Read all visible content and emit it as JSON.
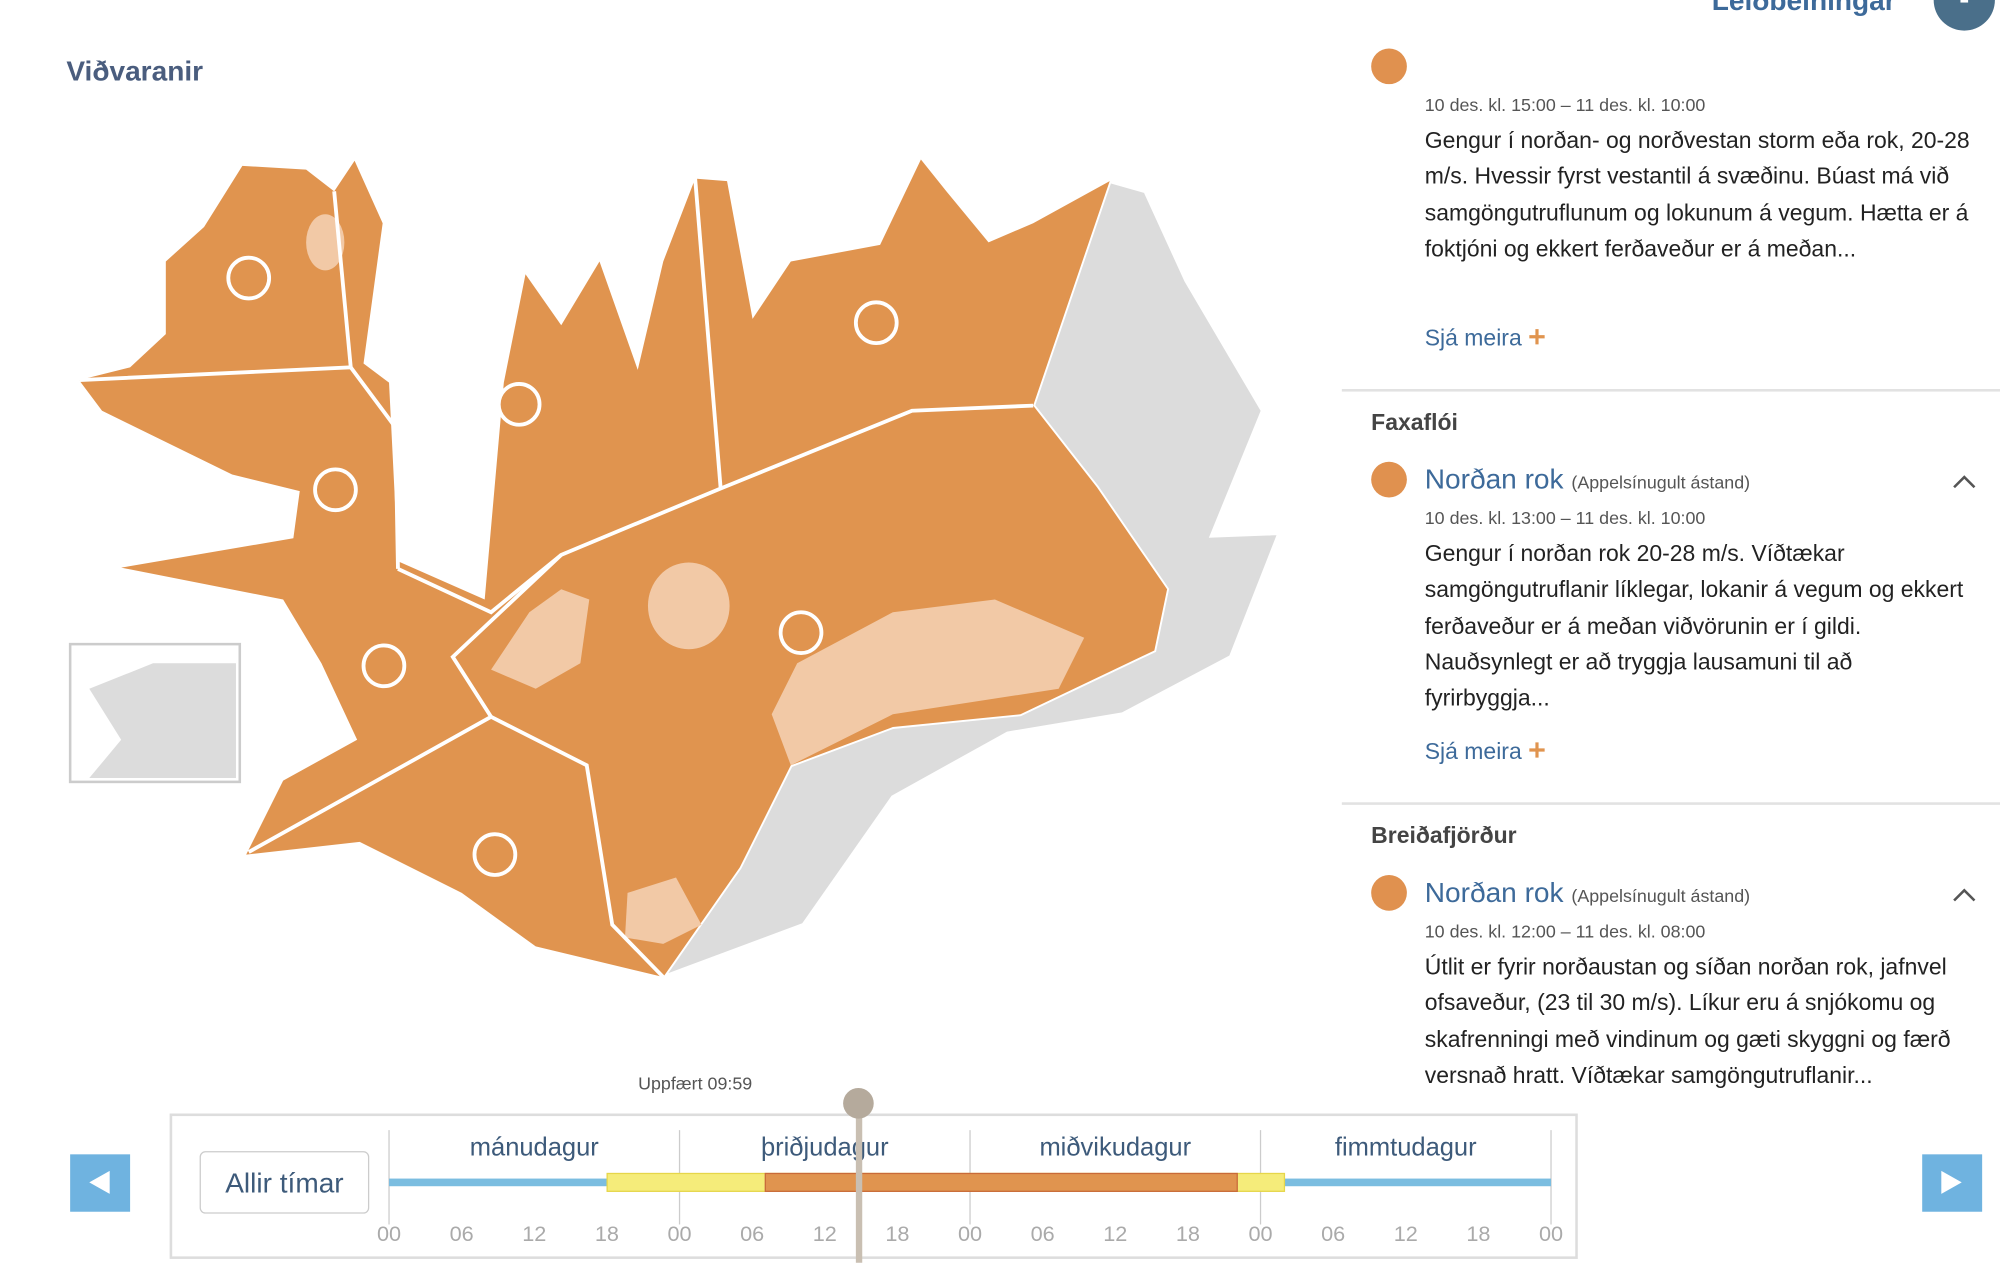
{
  "header": {
    "help_link": "Leiðbeiningar",
    "title": "Viðvaranir"
  },
  "warnings": [
    {
      "time": "10 des. kl. 15:00 – 11 des. kl. 10:00",
      "text": "Gengur í norðan- og norðvestan storm eða rok, 20-28 m/s. Hvessir fyrst vestantil á svæðinu. Búast má við samgöngutruflunum og lokunum á vegum. Hætta er á foktjóni og ekkert ferðaveður er á meðan...",
      "more": "Sjá meira"
    },
    {
      "region": "Faxaflói",
      "title": "Norðan rok",
      "level": "(Appelsínugult ástand)",
      "time": "10 des. kl. 13:00 – 11 des. kl. 10:00",
      "text": "Gengur í norðan rok 20-28 m/s. Víðtækar samgöngutruflanir líklegar, lokanir á vegum og ekkert ferðaveður er á meðan viðvörunin er í gildi. Nauðsynlegt er að tryggja lausamuni til að fyrirbyggja...",
      "more": "Sjá meira"
    },
    {
      "region": "Breiðafjörður",
      "title": "Norðan rok",
      "level": "(Appelsínugult ástand)",
      "time": "10 des. kl. 12:00 – 11 des. kl. 08:00",
      "text": "Útlit er fyrir norðaustan og síðan norðan rok, jafnvel ofsaveður, (23 til 30 m/s). Líkur eru á snjókomu og skafrenningi með vindinum og gæti skyggni og færð versnað hratt. Víðtækar samgöngutruflanir..."
    }
  ],
  "timeline": {
    "updated": "Uppfært 09:59",
    "all_times": "Allir tímar",
    "days": [
      "mánudagur",
      "þriðjudagur",
      "miðvikudagur",
      "fimmtudagur"
    ],
    "hours": [
      "00",
      "06",
      "12",
      "18",
      "00",
      "06",
      "12",
      "18",
      "00",
      "06",
      "12",
      "18",
      "00",
      "06",
      "12",
      "18",
      "00"
    ]
  }
}
